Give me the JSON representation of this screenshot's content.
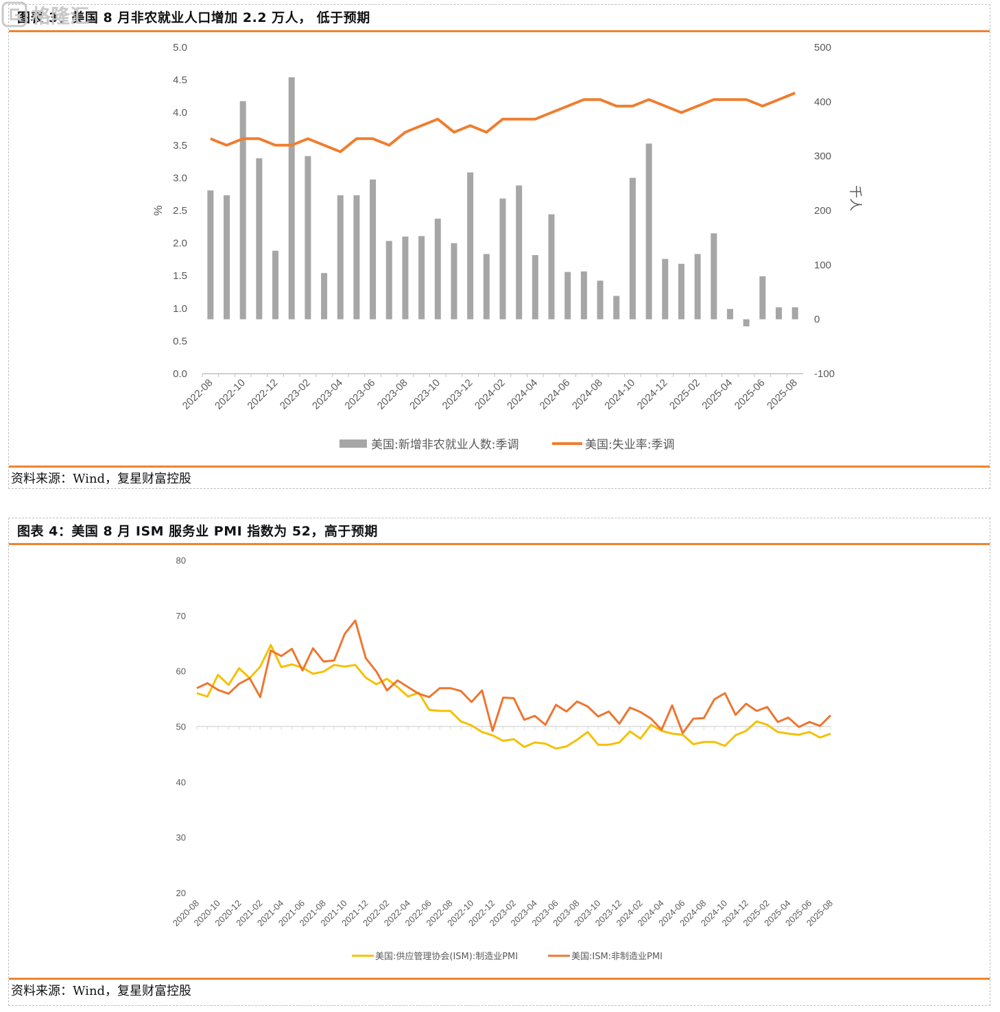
{
  "figure1": {
    "title": "图表 3：美国 8 月非农就业人口增加 2.2 万人， 低于预期",
    "source": "资料来源：Wind，复星财富控股",
    "chart_data": {
      "type": "bar+line",
      "categories": [
        "2022-08",
        "2022-09",
        "2022-10",
        "2022-11",
        "2022-12",
        "2023-01",
        "2023-02",
        "2023-03",
        "2023-04",
        "2023-05",
        "2023-06",
        "2023-07",
        "2023-08",
        "2023-09",
        "2023-10",
        "2023-11",
        "2023-12",
        "2024-01",
        "2024-02",
        "2024-03",
        "2024-04",
        "2024-05",
        "2024-06",
        "2024-07",
        "2024-08",
        "2024-09",
        "2024-10",
        "2024-11",
        "2024-12",
        "2025-01",
        "2025-02",
        "2025-03",
        "2025-04",
        "2025-05",
        "2025-06",
        "2025-07",
        "2025-08"
      ],
      "tick_labels": [
        "2022-08",
        "2022-10",
        "2022-12",
        "2023-02",
        "2023-04",
        "2023-06",
        "2023-08",
        "2023-10",
        "2023-12",
        "2024-02",
        "2024-04",
        "2024-06",
        "2024-08",
        "2024-10",
        "2024-12",
        "2025-02",
        "2025-04",
        "2025-06",
        "2025-08"
      ],
      "series": [
        {
          "name": "美国:新增非农就业人数:季调",
          "axis": "right",
          "color": "#a6a6a6",
          "values": [
            237,
            228,
            401,
            296,
            126,
            445,
            300,
            85,
            228,
            228,
            257,
            144,
            152,
            153,
            185,
            140,
            270,
            120,
            222,
            246,
            118,
            193,
            87,
            88,
            71,
            43,
            260,
            323,
            111,
            102,
            120,
            158,
            19,
            -13,
            79,
            22,
            22
          ]
        },
        {
          "name": "美国:失业率:季调",
          "axis": "left",
          "color": "#f07d2d",
          "values": [
            3.6,
            3.5,
            3.6,
            3.6,
            3.5,
            3.5,
            3.6,
            3.5,
            3.4,
            3.6,
            3.6,
            3.5,
            3.7,
            3.8,
            3.9,
            3.7,
            3.8,
            3.7,
            3.9,
            3.9,
            3.9,
            4.0,
            4.1,
            4.2,
            4.2,
            4.1,
            4.1,
            4.2,
            4.1,
            4.0,
            4.1,
            4.2,
            4.2,
            4.2,
            4.1,
            4.2,
            4.3
          ]
        }
      ],
      "left_axis": {
        "label": "%",
        "min": 0,
        "max": 5,
        "step": 0.5,
        "ticks": [
          "0.0",
          "0.5",
          "1.0",
          "1.5",
          "2.0",
          "2.5",
          "3.0",
          "3.5",
          "4.0",
          "4.5",
          "5.0"
        ]
      },
      "right_axis": {
        "label": "千人",
        "min": -100,
        "max": 500,
        "step": 100,
        "ticks": [
          "-100",
          "0",
          "100",
          "200",
          "300",
          "400",
          "500"
        ]
      },
      "legend": {
        "position": "bottom",
        "entries": [
          "美国:新增非农就业人数:季调",
          "美国:失业率:季调"
        ]
      }
    }
  },
  "figure2": {
    "title": "图表 4：美国 8 月 ISM 服务业 PMI 指数为 52，高于预期",
    "source": "资料来源：Wind，复星财富控股",
    "chart_data": {
      "type": "line",
      "tick_labels": [
        "2020-08",
        "2020-10",
        "2020-12",
        "2021-02",
        "2021-04",
        "2021-06",
        "2021-08",
        "2021-10",
        "2021-12",
        "2022-02",
        "2022-04",
        "2022-06",
        "2022-08",
        "2022-10",
        "2022-12",
        "2023-02",
        "2023-04",
        "2023-06",
        "2023-08",
        "2023-10",
        "2023-12",
        "2024-02",
        "2024-04",
        "2024-06",
        "2024-08",
        "2024-10",
        "2024-12",
        "2025-02",
        "2025-04",
        "2025-06",
        "2025-08"
      ],
      "y_axis": {
        "min": 20,
        "max": 80,
        "step": 10,
        "ticks": [
          "20",
          "30",
          "40",
          "50",
          "60",
          "70",
          "80"
        ]
      },
      "series": [
        {
          "name": "美国:供应管理协会(ISM):制造业PMI",
          "color": "#f5c000",
          "values": [
            56.0,
            55.4,
            59.3,
            57.5,
            60.5,
            58.7,
            60.8,
            64.7,
            60.7,
            61.2,
            60.6,
            59.5,
            59.9,
            61.1,
            60.8,
            61.1,
            58.8,
            57.6,
            58.6,
            57.1,
            55.4,
            56.1,
            53.0,
            52.8,
            52.8,
            50.9,
            50.2,
            49.0,
            48.4,
            47.4,
            47.7,
            46.3,
            47.1,
            46.9,
            46.0,
            46.4,
            47.6,
            49.0,
            46.7,
            46.7,
            47.1,
            49.1,
            47.8,
            50.3,
            49.2,
            48.7,
            48.5,
            46.8,
            47.2,
            47.2,
            46.5,
            48.4,
            49.2,
            50.9,
            50.3,
            49.0,
            48.7,
            48.5,
            49.0,
            48.0,
            48.7
          ]
        },
        {
          "name": "美国:ISM:非制造业PMI",
          "color": "#ee7530",
          "values": [
            56.9,
            57.8,
            56.6,
            55.9,
            57.7,
            58.7,
            55.3,
            63.7,
            62.7,
            64.0,
            60.1,
            64.1,
            61.7,
            61.9,
            66.7,
            69.1,
            62.3,
            59.9,
            56.5,
            58.3,
            57.1,
            55.9,
            55.3,
            56.9,
            56.9,
            56.4,
            54.4,
            56.5,
            49.2,
            55.2,
            55.1,
            51.2,
            51.9,
            50.3,
            53.9,
            52.7,
            54.5,
            53.6,
            51.8,
            52.7,
            50.5,
            53.4,
            52.6,
            51.4,
            49.4,
            53.8,
            48.8,
            51.4,
            51.5,
            54.9,
            56.0,
            52.1,
            54.1,
            52.8,
            53.5,
            50.8,
            51.6,
            49.9,
            50.8,
            50.1,
            52.0
          ]
        }
      ],
      "legend": {
        "position": "bottom",
        "entries": [
          "美国:供应管理协会(ISM):制造业PMI",
          "美国:ISM:非制造业PMI"
        ]
      }
    }
  },
  "watermark": {
    "text": "格隆汇"
  }
}
